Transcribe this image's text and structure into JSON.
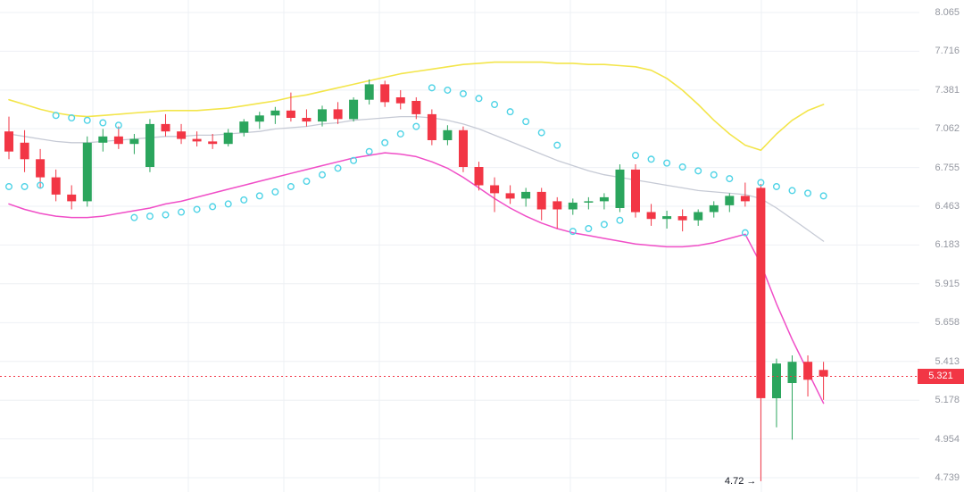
{
  "colors": {
    "background": "#ffffff",
    "up": "#2ba55d",
    "down": "#f23645",
    "yellow_line": "#f3e54a",
    "gray_line": "#c6cad5",
    "pink_line": "#f04ec7",
    "cyan_dots": "#4fd3e6",
    "grid": "#eef0f4",
    "axis_text": "#9598a1",
    "price_line": "#f23645",
    "annotation_text": "#131722"
  },
  "chart_data": {
    "type": "candlestick",
    "title": "",
    "y_axis": {
      "scale": "log",
      "ticks": [
        "8.065",
        "7.716",
        "7.381",
        "7.062",
        "6.755",
        "6.463",
        "6.183",
        "5.915",
        "5.658",
        "5.413",
        "5.178",
        "4.954",
        "4.739"
      ]
    },
    "current_price": 5.321,
    "price_tag": "5.321",
    "annotation": {
      "text": "4.72 →",
      "price": 4.72,
      "candle_index": 48
    },
    "candle_format": "[open,high,low,close]",
    "candles": [
      [
        7.04,
        7.16,
        6.82,
        6.88
      ],
      [
        6.95,
        7.05,
        6.72,
        6.82
      ],
      [
        6.82,
        6.9,
        6.6,
        6.68
      ],
      [
        6.68,
        6.74,
        6.5,
        6.55
      ],
      [
        6.55,
        6.62,
        6.44,
        6.5
      ],
      [
        6.5,
        7.0,
        6.46,
        6.95
      ],
      [
        6.95,
        7.06,
        6.88,
        7.0
      ],
      [
        7.0,
        7.08,
        6.9,
        6.94
      ],
      [
        6.94,
        7.02,
        6.86,
        6.98
      ],
      [
        6.76,
        7.14,
        6.72,
        7.1
      ],
      [
        7.1,
        7.18,
        7.0,
        7.04
      ],
      [
        7.04,
        7.1,
        6.94,
        6.98
      ],
      [
        6.98,
        7.04,
        6.92,
        6.96
      ],
      [
        6.96,
        7.02,
        6.9,
        6.94
      ],
      [
        6.94,
        7.06,
        6.92,
        7.03
      ],
      [
        7.03,
        7.14,
        7.0,
        7.12
      ],
      [
        7.12,
        7.2,
        7.06,
        7.17
      ],
      [
        7.17,
        7.24,
        7.1,
        7.21
      ],
      [
        7.21,
        7.36,
        7.12,
        7.15
      ],
      [
        7.15,
        7.22,
        7.08,
        7.12
      ],
      [
        7.12,
        7.25,
        7.08,
        7.22
      ],
      [
        7.22,
        7.28,
        7.1,
        7.14
      ],
      [
        7.14,
        7.32,
        7.12,
        7.3
      ],
      [
        7.3,
        7.47,
        7.26,
        7.43
      ],
      [
        7.43,
        7.46,
        7.24,
        7.28
      ],
      [
        7.32,
        7.38,
        7.22,
        7.27
      ],
      [
        7.29,
        7.32,
        7.14,
        7.18
      ],
      [
        7.18,
        7.22,
        6.93,
        6.97
      ],
      [
        6.97,
        7.09,
        6.93,
        7.05
      ],
      [
        7.05,
        7.08,
        6.72,
        6.76
      ],
      [
        6.76,
        6.8,
        6.58,
        6.62
      ],
      [
        6.62,
        6.68,
        6.42,
        6.56
      ],
      [
        6.56,
        6.62,
        6.48,
        6.52
      ],
      [
        6.52,
        6.6,
        6.46,
        6.57
      ],
      [
        6.57,
        6.6,
        6.36,
        6.44
      ],
      [
        6.5,
        6.53,
        6.3,
        6.44
      ],
      [
        6.44,
        6.52,
        6.4,
        6.49
      ],
      [
        6.49,
        6.53,
        6.44,
        6.5
      ],
      [
        6.5,
        6.56,
        6.44,
        6.53
      ],
      [
        6.45,
        6.78,
        6.42,
        6.74
      ],
      [
        6.74,
        6.78,
        6.38,
        6.42
      ],
      [
        6.42,
        6.48,
        6.32,
        6.37
      ],
      [
        6.37,
        6.43,
        6.3,
        6.39
      ],
      [
        6.39,
        6.44,
        6.28,
        6.36
      ],
      [
        6.36,
        6.44,
        6.32,
        6.42
      ],
      [
        6.42,
        6.5,
        6.38,
        6.47
      ],
      [
        6.47,
        6.56,
        6.42,
        6.54
      ],
      [
        6.54,
        6.64,
        6.46,
        6.5
      ],
      [
        6.6,
        6.63,
        4.72,
        5.19
      ],
      [
        5.19,
        5.43,
        5.02,
        5.4
      ],
      [
        5.28,
        5.45,
        4.95,
        5.41
      ],
      [
        5.41,
        5.45,
        5.2,
        5.3
      ],
      [
        5.36,
        5.41,
        5.18,
        5.32
      ]
    ],
    "lines": {
      "yellow": [
        7.3,
        7.26,
        7.22,
        7.19,
        7.17,
        7.16,
        7.17,
        7.18,
        7.19,
        7.2,
        7.21,
        7.21,
        7.21,
        7.22,
        7.23,
        7.25,
        7.27,
        7.29,
        7.32,
        7.34,
        7.37,
        7.4,
        7.43,
        7.46,
        7.49,
        7.52,
        7.54,
        7.56,
        7.58,
        7.6,
        7.61,
        7.62,
        7.62,
        7.62,
        7.62,
        7.61,
        7.61,
        7.6,
        7.6,
        7.59,
        7.58,
        7.55,
        7.48,
        7.38,
        7.26,
        7.13,
        7.02,
        6.93,
        6.89,
        7.02,
        7.13,
        7.21,
        7.26
      ],
      "gray": [
        7.02,
        7.0,
        6.98,
        6.96,
        6.95,
        6.95,
        6.96,
        6.97,
        6.98,
        6.99,
        7.0,
        7.0,
        7.01,
        7.01,
        7.02,
        7.03,
        7.04,
        7.06,
        7.07,
        7.08,
        7.1,
        7.11,
        7.13,
        7.14,
        7.15,
        7.16,
        7.16,
        7.15,
        7.13,
        7.1,
        7.06,
        7.01,
        6.96,
        6.91,
        6.86,
        6.81,
        6.77,
        6.73,
        6.7,
        6.68,
        6.66,
        6.64,
        6.62,
        6.6,
        6.58,
        6.57,
        6.56,
        6.55,
        6.52,
        6.45,
        6.37,
        6.29,
        6.21
      ],
      "pink": [
        6.48,
        6.44,
        6.41,
        6.39,
        6.38,
        6.38,
        6.39,
        6.41,
        6.43,
        6.45,
        6.48,
        6.5,
        6.53,
        6.56,
        6.59,
        6.62,
        6.65,
        6.68,
        6.71,
        6.74,
        6.77,
        6.8,
        6.83,
        6.85,
        6.87,
        6.86,
        6.84,
        6.8,
        6.75,
        6.68,
        6.6,
        6.52,
        6.45,
        6.39,
        6.34,
        6.3,
        6.27,
        6.25,
        6.23,
        6.21,
        6.19,
        6.18,
        6.17,
        6.17,
        6.18,
        6.2,
        6.23,
        6.26,
        6.05,
        5.78,
        5.55,
        5.35,
        5.16
      ]
    },
    "cyan_dots": [
      [
        0,
        6.61
      ],
      [
        1,
        6.61
      ],
      [
        2,
        6.62
      ],
      [
        3,
        7.17
      ],
      [
        4,
        7.15
      ],
      [
        5,
        7.13
      ],
      [
        6,
        7.11
      ],
      [
        7,
        7.09
      ],
      [
        8,
        6.38
      ],
      [
        9,
        6.39
      ],
      [
        10,
        6.4
      ],
      [
        11,
        6.42
      ],
      [
        12,
        6.44
      ],
      [
        13,
        6.46
      ],
      [
        14,
        6.48
      ],
      [
        15,
        6.51
      ],
      [
        16,
        6.54
      ],
      [
        17,
        6.57
      ],
      [
        18,
        6.61
      ],
      [
        19,
        6.65
      ],
      [
        20,
        6.7
      ],
      [
        21,
        6.75
      ],
      [
        22,
        6.81
      ],
      [
        23,
        6.88
      ],
      [
        24,
        6.95
      ],
      [
        25,
        7.02
      ],
      [
        26,
        7.08
      ],
      [
        27,
        7.4
      ],
      [
        28,
        7.38
      ],
      [
        29,
        7.35
      ],
      [
        30,
        7.31
      ],
      [
        31,
        7.26
      ],
      [
        32,
        7.2
      ],
      [
        33,
        7.12
      ],
      [
        34,
        7.03
      ],
      [
        35,
        6.93
      ],
      [
        36,
        6.28
      ],
      [
        37,
        6.3
      ],
      [
        38,
        6.33
      ],
      [
        39,
        6.36
      ],
      [
        40,
        6.85
      ],
      [
        41,
        6.82
      ],
      [
        42,
        6.79
      ],
      [
        43,
        6.76
      ],
      [
        44,
        6.73
      ],
      [
        45,
        6.7
      ],
      [
        46,
        6.67
      ],
      [
        47,
        6.27
      ],
      [
        48,
        6.64
      ],
      [
        49,
        6.61
      ],
      [
        50,
        6.58
      ],
      [
        51,
        6.56
      ],
      [
        52,
        6.54
      ]
    ]
  }
}
